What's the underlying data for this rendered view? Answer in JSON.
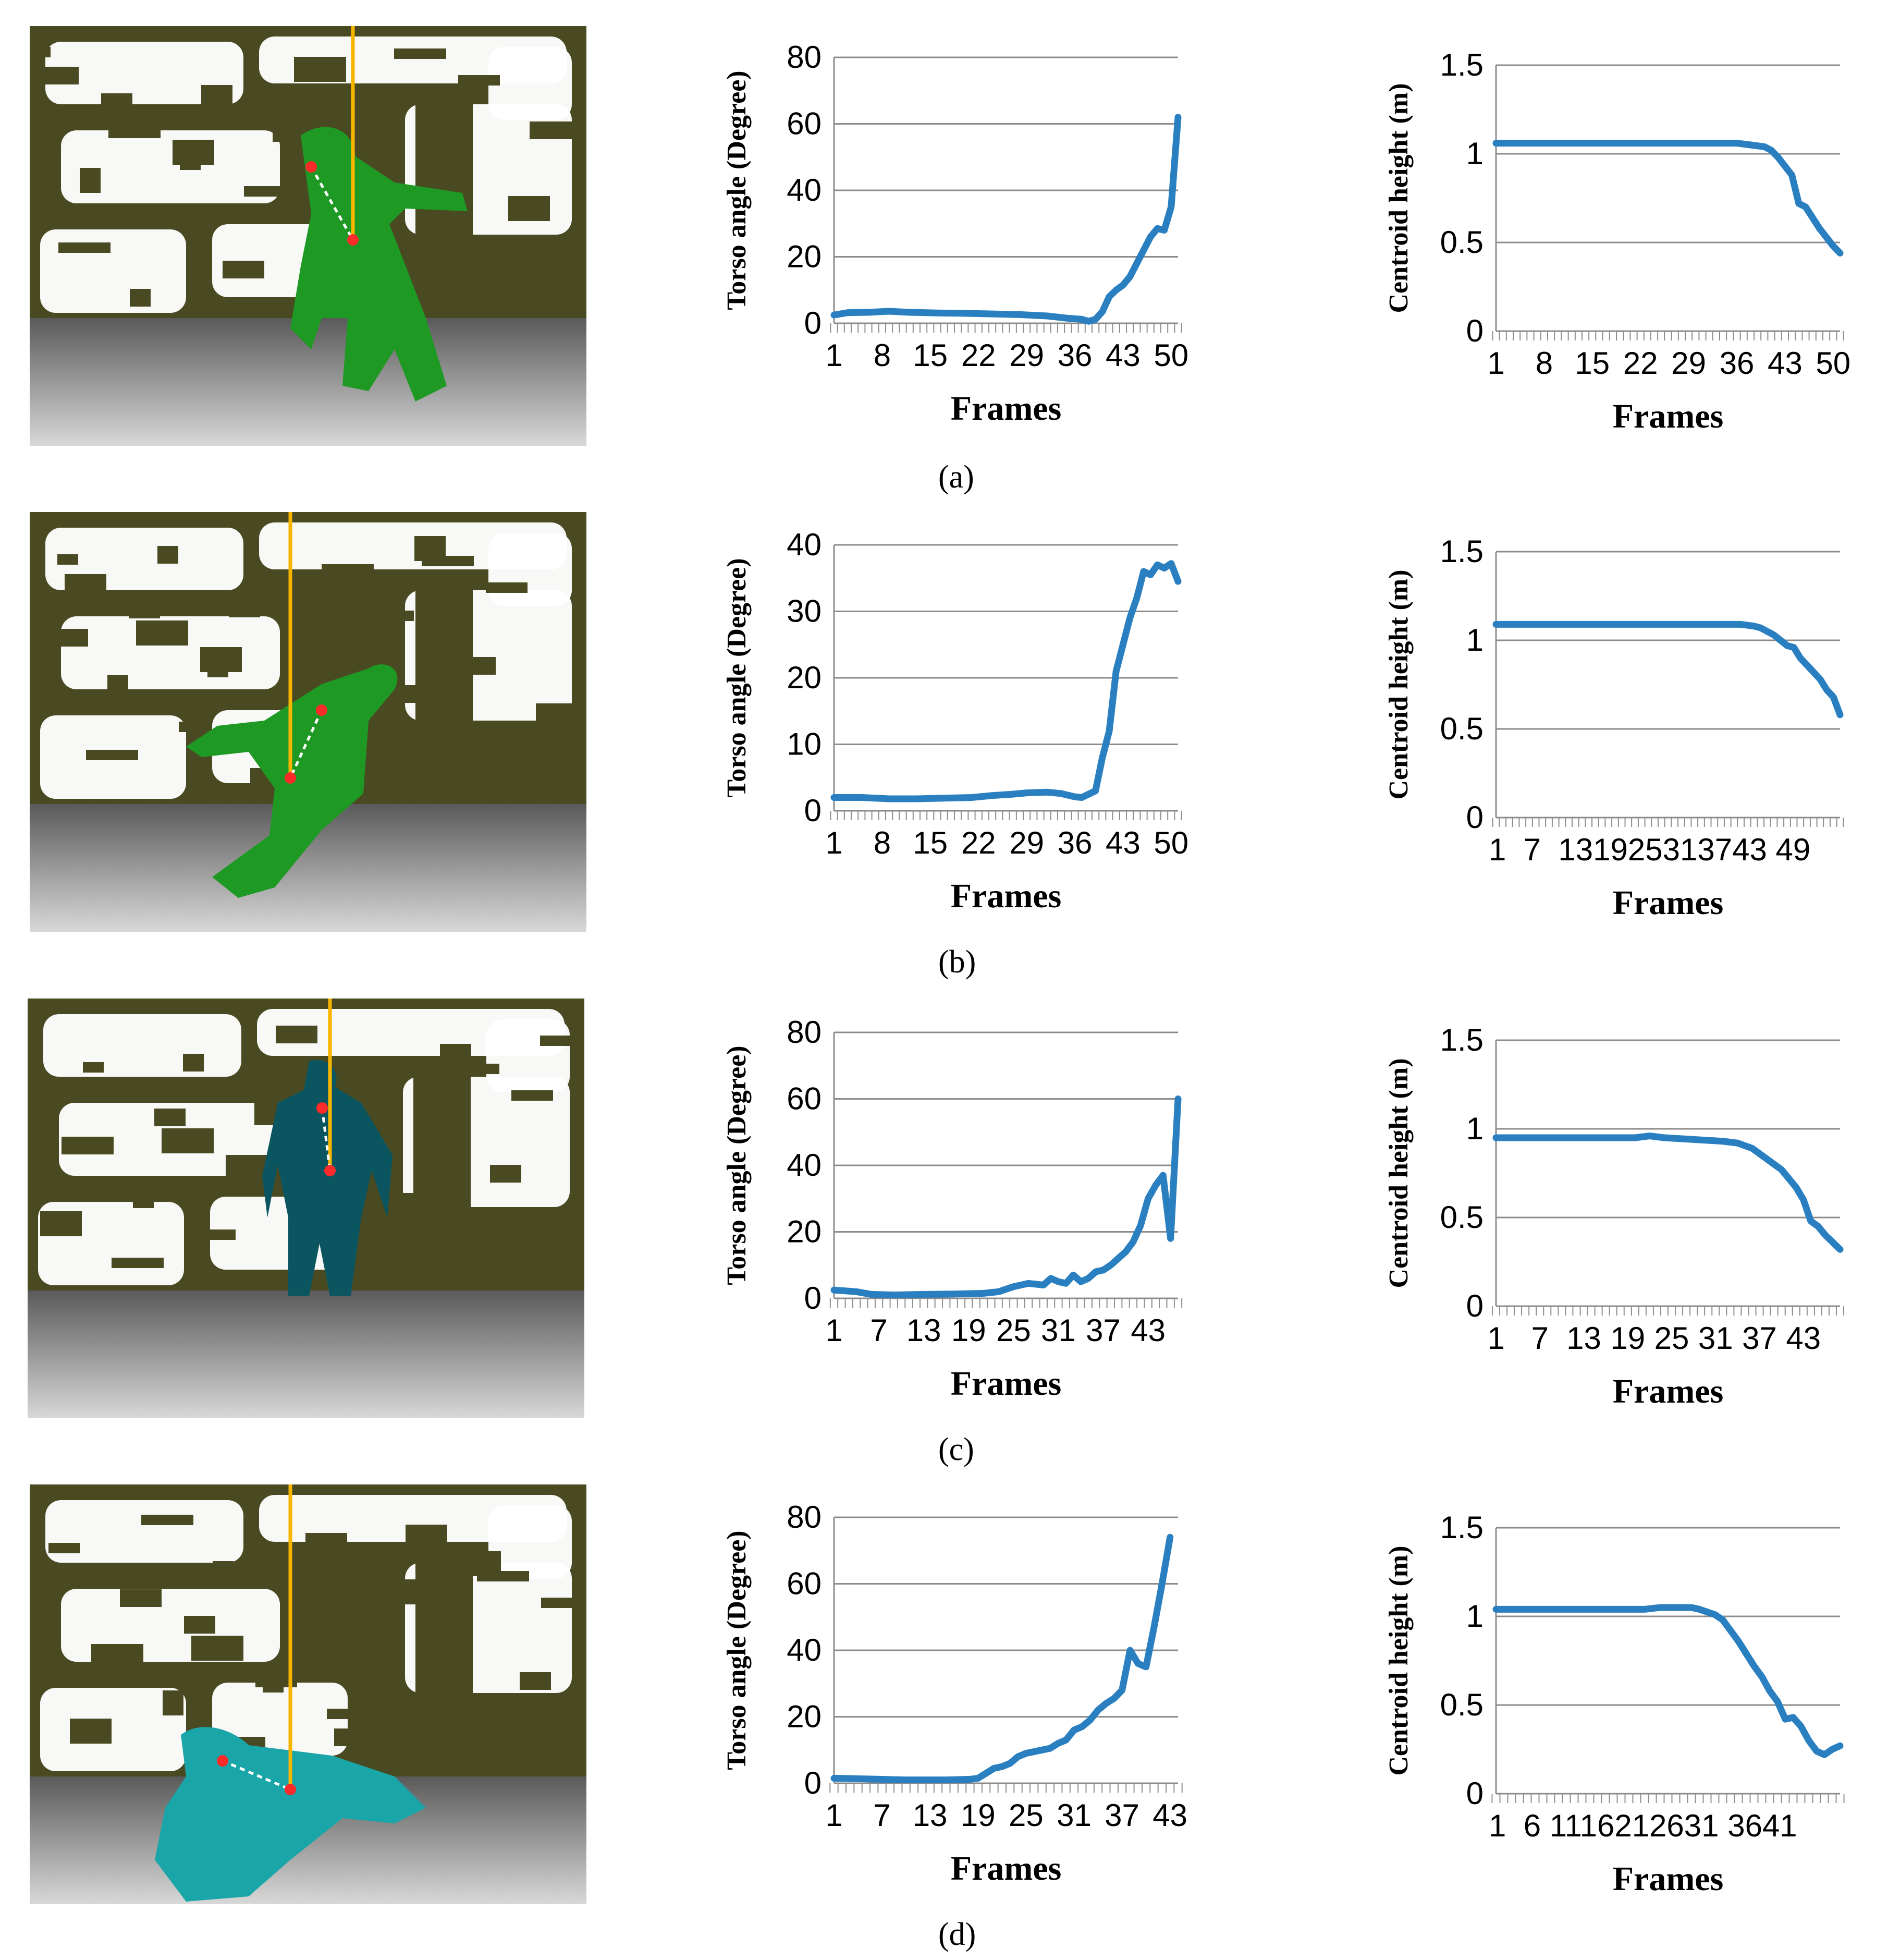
{
  "panel_labels": [
    "(a)",
    "(b)",
    "(c)",
    "(d)"
  ],
  "colors": {
    "line": "#2a7fc1",
    "grid": "#8c8c8c",
    "wall": "#4a4a22",
    "bright": "#ffffff",
    "floor_top": "#5a5a5a",
    "floor_bottom": "#d8d8d8",
    "plumb_line": "#f7b500",
    "joint": "#ff2a2a"
  },
  "photos": [
    {
      "name": "depth-image-a",
      "person_color": "#1e9a24"
    },
    {
      "name": "depth-image-b",
      "person_color": "#1e9a24"
    },
    {
      "name": "depth-image-c",
      "person_color": "#0b5560"
    },
    {
      "name": "depth-image-d",
      "person_color": "#1aa6a8"
    }
  ],
  "chart_data": [
    {
      "id": "a-torso",
      "type": "line",
      "xlabel": "Frames",
      "ylabel": "Torso angle (Degree)",
      "ylim": [
        0,
        80
      ],
      "yticks": [
        "0",
        "20",
        "40",
        "60",
        "80"
      ],
      "xlim": [
        1,
        51
      ],
      "xticks": [
        "1",
        "8",
        "15",
        "22",
        "29",
        "36",
        "43",
        "50"
      ],
      "grid": true,
      "series": [
        {
          "values": [
            [
              1,
              2.5
            ],
            [
              3,
              3.2
            ],
            [
              6,
              3.3
            ],
            [
              9,
              3.6
            ],
            [
              12,
              3.3
            ],
            [
              16,
              3.1
            ],
            [
              20,
              3.0
            ],
            [
              24,
              2.8
            ],
            [
              28,
              2.6
            ],
            [
              32,
              2.2
            ],
            [
              35,
              1.5
            ],
            [
              37,
              1.2
            ],
            [
              38,
              0.6
            ],
            [
              39,
              1.2
            ],
            [
              40,
              3.5
            ],
            [
              41,
              8
            ],
            [
              42,
              10
            ],
            [
              43,
              11.5
            ],
            [
              44,
              14
            ],
            [
              45,
              18
            ],
            [
              46,
              22
            ],
            [
              47,
              26
            ],
            [
              48,
              28.5
            ],
            [
              49,
              28
            ],
            [
              50,
              35
            ],
            [
              51,
              62
            ]
          ]
        }
      ]
    },
    {
      "id": "a-height",
      "type": "line",
      "xlabel": "Frames",
      "ylabel": "Centroid height (m)",
      "ylim": [
        0,
        1.5
      ],
      "yticks": [
        "0",
        "0.5",
        "1",
        "1.5"
      ],
      "xlim": [
        1,
        51
      ],
      "xticks": [
        "1",
        "8",
        "15",
        "22",
        "29",
        "36",
        "43",
        "50"
      ],
      "grid": true,
      "series": [
        {
          "values": [
            [
              1,
              1.06
            ],
            [
              20,
              1.06
            ],
            [
              36,
              1.06
            ],
            [
              38,
              1.05
            ],
            [
              40,
              1.04
            ],
            [
              41,
              1.02
            ],
            [
              42,
              0.98
            ],
            [
              43,
              0.93
            ],
            [
              44,
              0.88
            ],
            [
              45,
              0.72
            ],
            [
              46,
              0.7
            ],
            [
              47,
              0.64
            ],
            [
              48,
              0.58
            ],
            [
              49,
              0.53
            ],
            [
              50,
              0.48
            ],
            [
              51,
              0.44
            ]
          ]
        }
      ]
    },
    {
      "id": "b-torso",
      "type": "line",
      "xlabel": "Frames",
      "ylabel": "Torso angle (Degree)",
      "ylim": [
        0,
        40
      ],
      "yticks": [
        "0",
        "10",
        "20",
        "30",
        "40"
      ],
      "xlim": [
        1,
        51
      ],
      "xticks": [
        "1",
        "8",
        "15",
        "22",
        "29",
        "36",
        "43",
        "50"
      ],
      "grid": true,
      "series": [
        {
          "values": [
            [
              1,
              2.0
            ],
            [
              5,
              2.0
            ],
            [
              9,
              1.8
            ],
            [
              13,
              1.8
            ],
            [
              17,
              1.9
            ],
            [
              21,
              2.0
            ],
            [
              24,
              2.3
            ],
            [
              27,
              2.5
            ],
            [
              29,
              2.7
            ],
            [
              32,
              2.8
            ],
            [
              34,
              2.6
            ],
            [
              36,
              2.1
            ],
            [
              37,
              2.0
            ],
            [
              38,
              2.5
            ],
            [
              39,
              3.0
            ],
            [
              40,
              8
            ],
            [
              41,
              12
            ],
            [
              42,
              21
            ],
            [
              43,
              25
            ],
            [
              44,
              29
            ],
            [
              45,
              32
            ],
            [
              46,
              36
            ],
            [
              47,
              35.5
            ],
            [
              48,
              37
            ],
            [
              49,
              36.5
            ],
            [
              50,
              37.2
            ],
            [
              51,
              34.5
            ]
          ]
        }
      ]
    },
    {
      "id": "b-height",
      "type": "line",
      "xlabel": "Frames",
      "ylabel": "Centroid height (m)",
      "ylim": [
        0,
        1.5
      ],
      "yticks": [
        "0",
        "0.5",
        "1",
        "1.5"
      ],
      "xlim": [
        1,
        53
      ],
      "xticks": [
        "1",
        "7",
        "13",
        "19",
        "25",
        "31",
        "37",
        "43",
        "49"
      ],
      "xtick_label_text": "1  7  131925313743 49",
      "grid": true,
      "series": [
        {
          "values": [
            [
              1,
              1.09
            ],
            [
              20,
              1.09
            ],
            [
              38,
              1.09
            ],
            [
              40,
              1.08
            ],
            [
              41,
              1.07
            ],
            [
              43,
              1.03
            ],
            [
              44,
              1.0
            ],
            [
              45,
              0.97
            ],
            [
              46,
              0.96
            ],
            [
              47,
              0.9
            ],
            [
              48,
              0.86
            ],
            [
              49,
              0.82
            ],
            [
              50,
              0.78
            ],
            [
              51,
              0.72
            ],
            [
              52,
              0.68
            ],
            [
              53,
              0.58
            ]
          ]
        }
      ]
    },
    {
      "id": "c-torso",
      "type": "line",
      "xlabel": "Frames",
      "ylabel": "Torso angle (Degree)",
      "ylim": [
        0,
        80
      ],
      "yticks": [
        "0",
        "20",
        "40",
        "60",
        "80"
      ],
      "xlim": [
        1,
        47
      ],
      "xticks": [
        "1",
        "7",
        "13",
        "19",
        "25",
        "31",
        "37",
        "43"
      ],
      "grid": true,
      "series": [
        {
          "values": [
            [
              1,
              2.5
            ],
            [
              4,
              2
            ],
            [
              6,
              1.2
            ],
            [
              9,
              1
            ],
            [
              13,
              1.2
            ],
            [
              17,
              1.3
            ],
            [
              21,
              1.5
            ],
            [
              23,
              2
            ],
            [
              25,
              3.5
            ],
            [
              27,
              4.5
            ],
            [
              29,
              4
            ],
            [
              30,
              6
            ],
            [
              31,
              5
            ],
            [
              32,
              4.5
            ],
            [
              33,
              7
            ],
            [
              34,
              5
            ],
            [
              35,
              6
            ],
            [
              36,
              8
            ],
            [
              37,
              8.5
            ],
            [
              38,
              10
            ],
            [
              39,
              12
            ],
            [
              40,
              14
            ],
            [
              41,
              17
            ],
            [
              42,
              22
            ],
            [
              43,
              30
            ],
            [
              44,
              34
            ],
            [
              45,
              37
            ],
            [
              46,
              18
            ],
            [
              47,
              60
            ]
          ]
        }
      ]
    },
    {
      "id": "c-height",
      "type": "line",
      "xlabel": "Frames",
      "ylabel": "Centroid height (m)",
      "ylim": [
        0,
        1.5
      ],
      "yticks": [
        "0",
        "0.5",
        "1",
        "1.5"
      ],
      "xlim": [
        1,
        48
      ],
      "xticks": [
        "1",
        "7",
        "13",
        "19",
        "25",
        "31",
        "37",
        "43"
      ],
      "grid": true,
      "series": [
        {
          "values": [
            [
              1,
              0.95
            ],
            [
              10,
              0.95
            ],
            [
              20,
              0.95
            ],
            [
              22,
              0.96
            ],
            [
              24,
              0.95
            ],
            [
              28,
              0.94
            ],
            [
              32,
              0.93
            ],
            [
              34,
              0.92
            ],
            [
              36,
              0.89
            ],
            [
              38,
              0.83
            ],
            [
              40,
              0.77
            ],
            [
              41,
              0.72
            ],
            [
              42,
              0.67
            ],
            [
              43,
              0.6
            ],
            [
              44,
              0.48
            ],
            [
              45,
              0.45
            ],
            [
              46,
              0.4
            ],
            [
              47,
              0.36
            ],
            [
              48,
              0.32
            ]
          ]
        }
      ]
    },
    {
      "id": "d-torso",
      "type": "line",
      "xlabel": "Frames",
      "ylabel": "Torso angle (Degree)",
      "ylim": [
        0,
        80
      ],
      "yticks": [
        "0",
        "20",
        "40",
        "60",
        "80"
      ],
      "xlim": [
        1,
        44
      ],
      "xticks": [
        "1",
        "7",
        "13",
        "19",
        "25",
        "31",
        "37",
        "43"
      ],
      "grid": true,
      "series": [
        {
          "values": [
            [
              1,
              1.5
            ],
            [
              5,
              1.3
            ],
            [
              10,
              1.0
            ],
            [
              15,
              1.0
            ],
            [
              18,
              1.2
            ],
            [
              19,
              1.5
            ],
            [
              20,
              3
            ],
            [
              21,
              4.5
            ],
            [
              22,
              5
            ],
            [
              23,
              6
            ],
            [
              24,
              8
            ],
            [
              25,
              9
            ],
            [
              27,
              10
            ],
            [
              28,
              10.5
            ],
            [
              29,
              12
            ],
            [
              30,
              13
            ],
            [
              31,
              16
            ],
            [
              32,
              17
            ],
            [
              33,
              19
            ],
            [
              34,
              22
            ],
            [
              35,
              24
            ],
            [
              36,
              25.5
            ],
            [
              37,
              28
            ],
            [
              38,
              40
            ],
            [
              39,
              36
            ],
            [
              40,
              35
            ],
            [
              41,
              47
            ],
            [
              42,
              60
            ],
            [
              43,
              74
            ]
          ]
        }
      ]
    },
    {
      "id": "d-height",
      "type": "line",
      "xlabel": "Frames",
      "ylabel": "Centroid height (m)",
      "ylim": [
        0,
        1.5
      ],
      "yticks": [
        "0",
        "0.5",
        "1",
        "1.5"
      ],
      "xlim": [
        1,
        45
      ],
      "xticks": [
        "1",
        "6",
        "11",
        "16",
        "21",
        "26",
        "31",
        "36",
        "41"
      ],
      "xtick_label_text": "1  6 1116212631 3641",
      "grid": true,
      "series": [
        {
          "values": [
            [
              1,
              1.04
            ],
            [
              10,
              1.04
            ],
            [
              20,
              1.04
            ],
            [
              22,
              1.05
            ],
            [
              24,
              1.05
            ],
            [
              26,
              1.05
            ],
            [
              27,
              1.04
            ],
            [
              29,
              1.01
            ],
            [
              30,
              0.98
            ],
            [
              31,
              0.92
            ],
            [
              32,
              0.86
            ],
            [
              33,
              0.79
            ],
            [
              34,
              0.72
            ],
            [
              35,
              0.66
            ],
            [
              36,
              0.58
            ],
            [
              37,
              0.52
            ],
            [
              38,
              0.42
            ],
            [
              39,
              0.43
            ],
            [
              40,
              0.38
            ],
            [
              41,
              0.3
            ],
            [
              42,
              0.24
            ],
            [
              43,
              0.22
            ],
            [
              44,
              0.25
            ],
            [
              45,
              0.27
            ]
          ]
        }
      ]
    }
  ]
}
